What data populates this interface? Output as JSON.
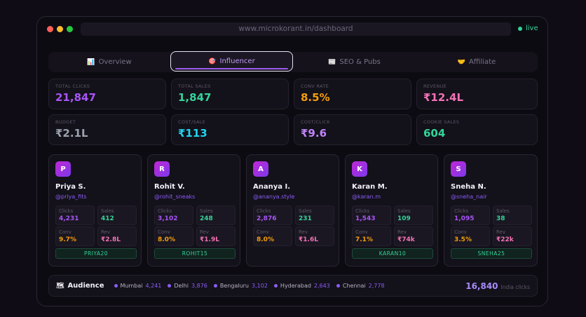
{
  "browser": {
    "url": "www.microkorant.in/dashboard",
    "status": "live"
  },
  "tabs": [
    {
      "label": "Overview",
      "icon": "📊"
    },
    {
      "label": "Influencer",
      "icon": "🎯"
    },
    {
      "label": "SEO & Pubs",
      "icon": "📰"
    },
    {
      "label": "Affiliate",
      "icon": "🤝"
    }
  ],
  "stats": [
    {
      "label": "TOTAL CLICKS",
      "value": "21,847",
      "color": "#a855f7"
    },
    {
      "label": "TOTAL SALES",
      "value": "1,847",
      "color": "#34d399"
    },
    {
      "label": "CONV RATE",
      "value": "8.5%",
      "color": "#f59e0b"
    },
    {
      "label": "REVENUE",
      "value": "₹12.4L",
      "color": "#f472b6"
    },
    {
      "label": "BUDGET",
      "value": "₹2.1L",
      "color": "#9ca3af"
    },
    {
      "label": "COST/SALE",
      "value": "₹113",
      "color": "#22d3ee"
    },
    {
      "label": "COST/CLICK",
      "value": "₹9.6",
      "color": "#c084fc"
    },
    {
      "label": "COOKIE SALES",
      "value": "604",
      "color": "#34d399"
    }
  ],
  "influencers": [
    {
      "initial": "P",
      "name": "Priya S.",
      "handle": "@priya_fits",
      "clicks": "4,231",
      "sales": "412",
      "conv": "9.7%",
      "rev": "₹2.8L",
      "coupon": "PRIYA20"
    },
    {
      "initial": "R",
      "name": "Rohit V.",
      "handle": "@rohit_sneaks",
      "clicks": "3,102",
      "sales": "248",
      "conv": "8.0%",
      "rev": "₹1.9L",
      "coupon": "ROHIT15"
    },
    {
      "initial": "A",
      "name": "Ananya I.",
      "handle": "@ananya.style",
      "clicks": "2,876",
      "sales": "231",
      "conv": "8.0%",
      "rev": "₹1.6L",
      "coupon": ""
    },
    {
      "initial": "K",
      "name": "Karan M.",
      "handle": "@karan.m",
      "clicks": "1,543",
      "sales": "109",
      "conv": "7.1%",
      "rev": "₹74k",
      "coupon": "KARAN10"
    },
    {
      "initial": "S",
      "name": "Sneha N.",
      "handle": "@sneha_nair",
      "clicks": "1,095",
      "sales": "38",
      "conv": "3.5%",
      "rev": "₹22k",
      "coupon": "SNEHA25"
    }
  ],
  "metric_labels": {
    "clicks": "Clicks",
    "sales": "Sales",
    "conv": "Conv",
    "rev": "Rev"
  },
  "audience": {
    "title": "Audience",
    "icon": "🗺",
    "cities": [
      {
        "name": "Mumbai",
        "count": "4,241"
      },
      {
        "name": "Delhi",
        "count": "3,876"
      },
      {
        "name": "Bengaluru",
        "count": "3,102"
      },
      {
        "name": "Hyderabad",
        "count": "2,643"
      },
      {
        "name": "Chennai",
        "count": "2,778"
      }
    ],
    "total": "16,840",
    "total_label": "India clicks"
  }
}
